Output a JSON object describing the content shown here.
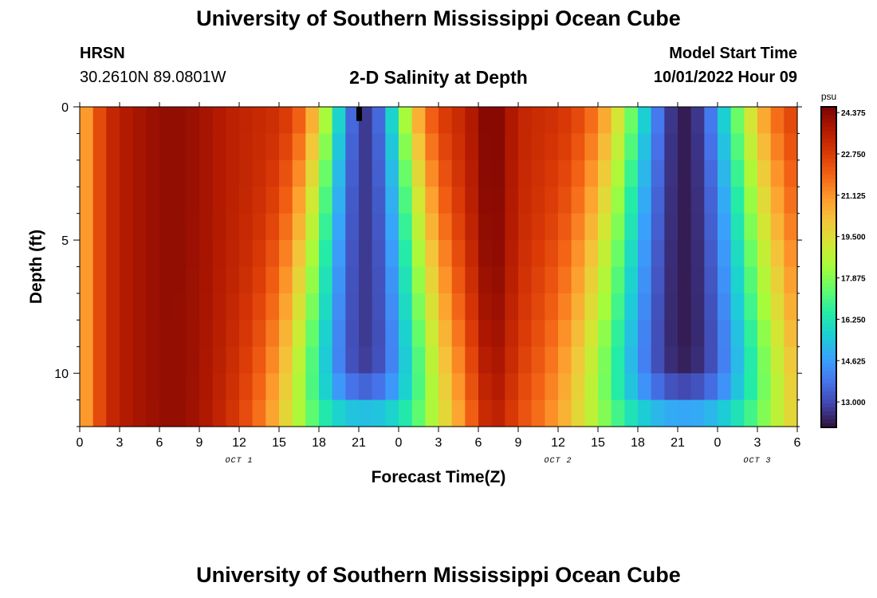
{
  "header": {
    "title": "University of Southern Mississippi Ocean Cube",
    "station": "HRSN",
    "coords": "30.2610N  89.0801W",
    "subtitle": "2-D Salinity at Depth",
    "model_label": "Model Start Time",
    "model_time": "10/01/2022 Hour 09"
  },
  "footer": {
    "title": "University of Southern Mississippi Ocean Cube"
  },
  "chart_data": {
    "type": "heatmap",
    "xlabel": "Forecast Time(Z)",
    "ylabel": "Depth (ft)",
    "x_tick_labels": [
      "0",
      "3",
      "6",
      "9",
      "12",
      "15",
      "18",
      "21",
      "0",
      "3",
      "6",
      "9",
      "12",
      "15",
      "18",
      "21",
      "0",
      "3",
      "6"
    ],
    "x_range_hours": [
      0,
      54
    ],
    "day_labels": [
      {
        "label": "OCT 1",
        "hour": 12
      },
      {
        "label": "OCT 2",
        "hour": 36
      },
      {
        "label": "OCT 3",
        "hour": 51
      }
    ],
    "y_tick_labels": [
      "0",
      "5",
      "10"
    ],
    "y_range_ft": [
      0,
      12
    ],
    "colorbar": {
      "unit": "psu",
      "min": 12.0,
      "max": 24.6,
      "tick_labels": [
        "24.375",
        "22.750",
        "21.125",
        "19.500",
        "17.875",
        "16.250",
        "14.625",
        "13.000"
      ],
      "colors": [
        "#30123b",
        "#4145ab",
        "#4675ed",
        "#39a2fc",
        "#1bcfd4",
        "#24eca6",
        "#61fc6c",
        "#a4fc3b",
        "#d1e834",
        "#f3c63a",
        "#fe9b2d",
        "#f36315",
        "#d93806",
        "#b11901",
        "#7a0403"
      ]
    },
    "field_description": "salinity (psu) vs forecast hour (0-54) and depth (0-12 ft)",
    "min_value_marker": {
      "hour": 21,
      "depth_ft": 0.5,
      "label": ""
    }
  }
}
